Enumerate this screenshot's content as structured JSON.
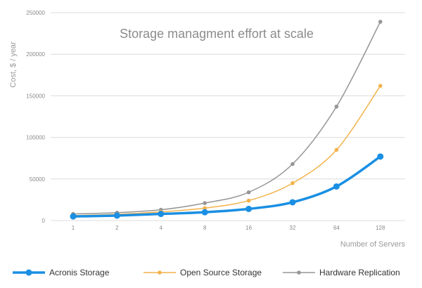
{
  "chart_data": {
    "type": "line",
    "title": "Storage managment effort at scale",
    "xlabel": "Number of Servers",
    "ylabel": "Cost, $ / year",
    "categories": [
      "1",
      "2",
      "4",
      "8",
      "16",
      "32",
      "64",
      "128"
    ],
    "ylim": [
      0,
      250000
    ],
    "yticks": [
      "0",
      "50000",
      "100000",
      "150000",
      "200000",
      "250000"
    ],
    "grid": true,
    "legend_position": "bottom",
    "series": [
      {
        "name": "Acronis Storage",
        "color": "#1a8fe3",
        "values": [
          5000,
          6000,
          8000,
          10000,
          14000,
          22000,
          41000,
          77000
        ]
      },
      {
        "name": "Open Source Storage",
        "color": "#f2b24a",
        "values": [
          6000,
          7500,
          10500,
          15000,
          24000,
          45000,
          85000,
          162000
        ]
      },
      {
        "name": "Hardware Replication",
        "color": "#959595",
        "values": [
          8000,
          9500,
          13000,
          21000,
          34000,
          68000,
          137000,
          239000
        ]
      }
    ]
  }
}
